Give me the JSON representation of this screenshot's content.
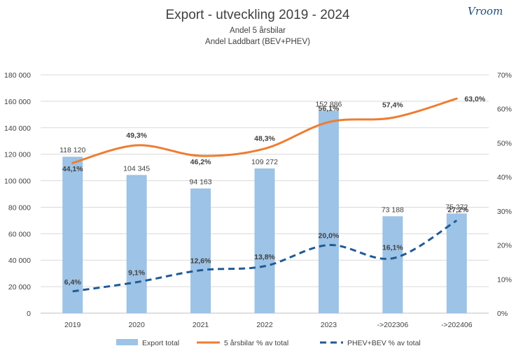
{
  "chart_data": {
    "type": "bar",
    "title": "Export - utveckling 2019 - 2024",
    "subtitles": [
      "Andel 5 årsbilar",
      "Andel Laddbart (BEV+PHEV)"
    ],
    "logo_text": "Vroom",
    "categories": [
      "2019",
      "2020",
      "2021",
      "2022",
      "2023",
      "->202306",
      "->202406"
    ],
    "y_left": {
      "min": 0,
      "max": 180000,
      "step": 20000,
      "ticks": [
        "0",
        "20 000",
        "40 000",
        "60 000",
        "80 000",
        "100 000",
        "120 000",
        "140 000",
        "160 000",
        "180 000"
      ]
    },
    "y_right": {
      "min": 0,
      "max": 70,
      "step": 10,
      "ticks": [
        "0%",
        "10%",
        "20%",
        "30%",
        "40%",
        "50%",
        "60%",
        "70%"
      ]
    },
    "grid": true,
    "legend_position": "bottom",
    "series": [
      {
        "name": "Export total",
        "type": "bar",
        "axis": "left",
        "color": "#9dc3e6",
        "values": [
          118120,
          104345,
          94163,
          109272,
          152886,
          73188,
          75272
        ],
        "labels": [
          "118 120",
          "104 345",
          "94 163",
          "109 272",
          "152 886",
          "73 188",
          "75 272"
        ]
      },
      {
        "name": "5 årsbilar % av total",
        "type": "line",
        "axis": "right",
        "color": "#ed7d31",
        "style": "solid",
        "values": [
          44.1,
          49.3,
          46.2,
          48.3,
          56.1,
          57.4,
          63.0
        ],
        "labels": [
          "44,1%",
          "49,3%",
          "46,2%",
          "48,3%",
          "56,1%",
          "57,4%",
          "63,0%"
        ]
      },
      {
        "name": "PHEV+BEV % av total",
        "type": "line",
        "axis": "right",
        "color": "#1f5a96",
        "style": "dashed",
        "values": [
          6.4,
          9.1,
          12.6,
          13.8,
          20.0,
          16.1,
          27.2
        ],
        "labels": [
          "6,4%",
          "9,1%",
          "12,6%",
          "13,8%",
          "20,0%",
          "16,1%",
          "27,2%"
        ]
      }
    ]
  }
}
